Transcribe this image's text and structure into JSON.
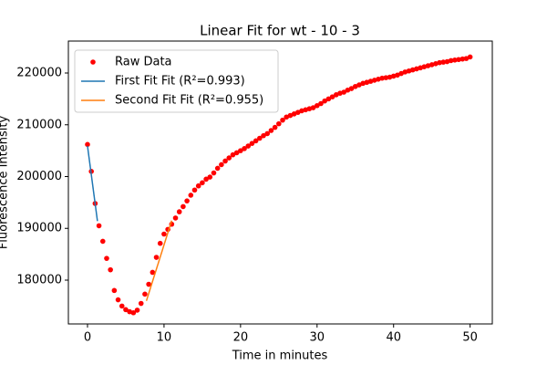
{
  "chart_data": {
    "type": "scatter",
    "title": "Linear Fit for wt - 10 - 3",
    "xlabel": "Time in minutes",
    "ylabel": "Fluorescence Intensity",
    "xlim": [
      -2.5,
      52.9
    ],
    "ylim": [
      171540,
      226170
    ],
    "xticks": [
      0,
      10,
      20,
      30,
      40,
      50
    ],
    "yticks": [
      180000,
      190000,
      200000,
      210000,
      220000
    ],
    "legend": "upper left",
    "series": [
      {
        "name": "Raw Data",
        "type": "scatter",
        "color": "#ff0000",
        "x": [
          0,
          0.5,
          1,
          1.5,
          2,
          2.5,
          3,
          3.5,
          4,
          4.5,
          5,
          5.5,
          6,
          6.5,
          7,
          7.5,
          8,
          8.5,
          9,
          9.5,
          10,
          10.5,
          11,
          11.5,
          12,
          12.5,
          13,
          13.5,
          14,
          14.5,
          15,
          15.5,
          16,
          16.5,
          17,
          17.5,
          18,
          18.5,
          19,
          19.5,
          20,
          20.5,
          21,
          21.5,
          22,
          22.5,
          23,
          23.5,
          24,
          24.5,
          25,
          25.5,
          26,
          26.5,
          27,
          27.5,
          28,
          28.5,
          29,
          29.5,
          30,
          30.5,
          31,
          31.5,
          32,
          32.5,
          33,
          33.5,
          34,
          34.5,
          35,
          35.5,
          36,
          36.5,
          37,
          37.5,
          38,
          38.5,
          39,
          39.5,
          40,
          40.5,
          41,
          41.5,
          42,
          42.5,
          43,
          43.5,
          44,
          44.5,
          45,
          45.5,
          46,
          46.5,
          47,
          47.5,
          48,
          48.5,
          49,
          49.5,
          50
        ],
        "values": [
          206200,
          201000,
          194800,
          190500,
          187500,
          184200,
          182000,
          178000,
          176200,
          175000,
          174300,
          173900,
          173700,
          174200,
          175500,
          177300,
          179200,
          181500,
          184400,
          187100,
          188900,
          189800,
          190800,
          192000,
          193200,
          194200,
          195300,
          196400,
          197400,
          198200,
          198800,
          199500,
          199900,
          200700,
          201600,
          202300,
          203000,
          203600,
          204200,
          204600,
          205000,
          205400,
          205900,
          206400,
          206900,
          207400,
          207900,
          208300,
          208900,
          209500,
          210200,
          210900,
          211500,
          211800,
          212100,
          212400,
          212700,
          212900,
          213100,
          213300,
          213700,
          214100,
          214600,
          215000,
          215400,
          215800,
          216100,
          216300,
          216700,
          217000,
          217400,
          217700,
          218000,
          218200,
          218400,
          218600,
          218800,
          219000,
          219100,
          219200,
          219400,
          219600,
          219900,
          220200,
          220400,
          220600,
          220800,
          221000,
          221200,
          221400,
          221600,
          221800,
          222000,
          222100,
          222200,
          222400,
          222500,
          222600,
          222700,
          222800,
          223100
        ]
      },
      {
        "name": "First Fit Fit (R²=0.993)",
        "type": "line",
        "color": "#1f77b4",
        "x": [
          0,
          1.3
        ],
        "values": [
          205900,
          191400
        ]
      },
      {
        "name": "Second Fit Fit (R²=0.955)",
        "type": "line",
        "color": "#ff7f0e",
        "x": [
          7.7,
          11.0
        ],
        "values": [
          176000,
          191500
        ]
      }
    ]
  }
}
